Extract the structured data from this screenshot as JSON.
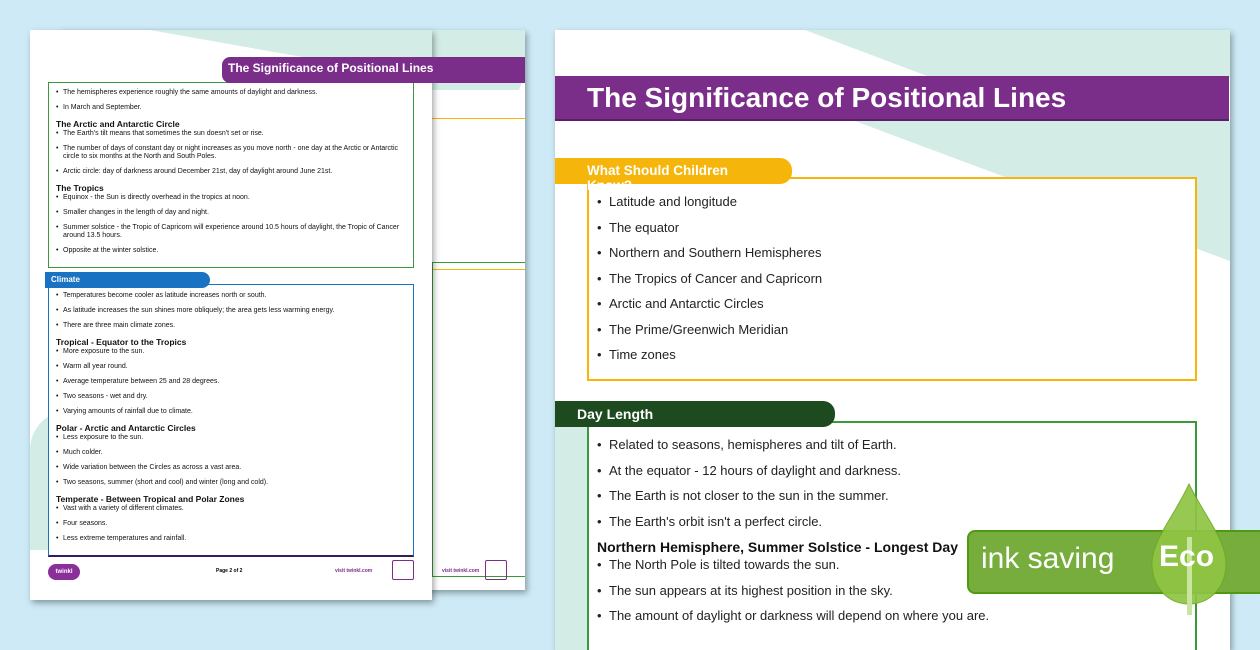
{
  "back_page": {
    "title": "The Significance of Positional Lines",
    "section1_items": [
      "The hemispheres experience roughly the same amounts of daylight and darkness.",
      "In March and September."
    ],
    "groups1": [
      {
        "heading": "The Arctic and Antarctic Circle",
        "items": [
          "The Earth's tilt means that sometimes the sun doesn't set or rise.",
          "The number of days of constant day or night increases as you move north - one day at the Arctic or Antarctic circle to six months at the North and South Poles.",
          "Arctic circle: day of darkness around December 21st, day of daylight around June 21st."
        ]
      },
      {
        "heading": "The Tropics",
        "items": [
          "Equinox - the Sun is directly overhead in the tropics at noon.",
          "Smaller changes in the length of day and night.",
          "Summer solstice - the Tropic of Capricorn will experience around 10.5 hours of daylight, the Tropic of Cancer around 13.5 hours.",
          "Opposite at the winter solstice."
        ]
      }
    ],
    "climate_title": "Climate",
    "climate_items": [
      "Temperatures become cooler as latitude increases north or south.",
      "As latitude increases the sun shines more obliquely; the area gets less warming energy.",
      "There are three main climate zones."
    ],
    "climate_groups": [
      {
        "heading": "Tropical - Equator to the Tropics",
        "items": [
          "More exposure to the sun.",
          "Warm all year round.",
          "Average temperature between 25 and 28 degrees.",
          "Two seasons - wet and dry.",
          "Varying amounts of rainfall due to climate."
        ]
      },
      {
        "heading": "Polar  - Arctic and Antarctic Circles",
        "items": [
          "Less exposure to the sun.",
          "Much colder.",
          "Wide variation between the Circles as across a vast area.",
          "Two seasons, summer (short and cool) and winter (long and cold)."
        ]
      },
      {
        "heading": "Temperate - Between Tropical and Polar Zones",
        "items": [
          "Vast with a variety of different climates.",
          "Four seasons.",
          "Less extreme temperatures and rainfall."
        ]
      }
    ],
    "footer": {
      "logo": "twinkl",
      "page": "Page 2 of 2",
      "site": "visit twinkl.com"
    },
    "behind_footer_site": "visit twinkl.com"
  },
  "front_page": {
    "title": "The Significance of Positional Lines",
    "know_title": "What Should Children Know?",
    "know_items": [
      "Latitude and longitude",
      "The equator",
      "Northern and Southern Hemispheres",
      "The Tropics of Cancer and Capricorn",
      "Arctic and Antarctic Circles",
      "The Prime/Greenwich Meridian",
      "Time zones"
    ],
    "day_title": "Day Length",
    "day_items": [
      "Related to seasons, hemispheres and tilt of Earth.",
      "At the equator - 12 hours of daylight and darkness.",
      "The Earth is not closer to the sun in the summer.",
      "The Earth's orbit isn't a perfect circle."
    ],
    "day_groups": [
      {
        "heading": "Northern Hemisphere, Summer Solstice - Longest Day",
        "items": [
          "The North Pole is tilted towards the sun.",
          "The sun appears at its highest position in the sky.",
          "The amount of daylight or darkness will depend on where you are."
        ]
      }
    ]
  },
  "eco_badge": {
    "text": "ink saving",
    "eco": "Eco"
  },
  "colors": {
    "purple": "#7b2d8a",
    "yellow": "#f5b50a",
    "dark_green": "#1d4a1f",
    "green": "#3a9a3a",
    "blue": "#1a73c2",
    "eco_green": "#76ad3c",
    "background": "#cdeaf6"
  }
}
